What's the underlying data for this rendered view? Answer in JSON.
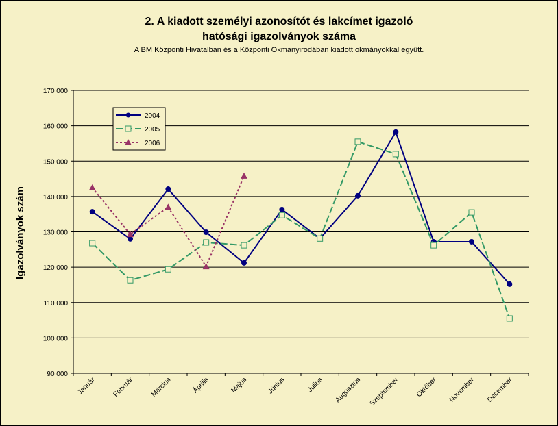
{
  "chart_data": {
    "type": "line",
    "title": [
      "2. A kiadott személyi azonosítót és lakcímet igazoló",
      "hatósági igazolványok száma"
    ],
    "subtitle": "A BM Központi Hivatalban és a Központi Okmányirodában kiadott okmányokkal együtt.",
    "y_label": "Igazolványok szám",
    "categories": [
      "Január",
      "Február",
      "Március",
      "Április",
      "Május",
      "Június",
      "Július",
      "Augusztus",
      "Szeptember",
      "Október",
      "November",
      "December"
    ],
    "series": [
      {
        "name": "2004",
        "color": "#000080",
        "dash": "solid",
        "marker": "circle",
        "values": [
          135700,
          128000,
          142100,
          129900,
          121200,
          136300,
          128100,
          140200,
          158200,
          127200,
          127200,
          115200
        ]
      },
      {
        "name": "2005",
        "color": "#339966",
        "dash": "dashed",
        "marker": "square",
        "values": [
          126800,
          116300,
          119400,
          127000,
          126200,
          134700,
          128100,
          155500,
          152000,
          126200,
          135500,
          105500
        ]
      },
      {
        "name": "2006",
        "color": "#993366",
        "dash": "dotted",
        "marker": "triangle",
        "values": [
          142500,
          129300,
          137000,
          120200,
          145800,
          null,
          null,
          null,
          null,
          null,
          null,
          null
        ]
      }
    ],
    "ylim": [
      90000,
      170000
    ],
    "yticks": [
      {
        "value": 90000,
        "label": "90 000"
      },
      {
        "value": 100000,
        "label": "100 000"
      },
      {
        "value": 110000,
        "label": "110 000"
      },
      {
        "value": 120000,
        "label": "120 000"
      },
      {
        "value": 130000,
        "label": "130 000"
      },
      {
        "value": 140000,
        "label": "140 000"
      },
      {
        "value": 150000,
        "label": "150 000"
      },
      {
        "value": 160000,
        "label": "160 000"
      },
      {
        "value": 170000,
        "label": "170 000"
      }
    ],
    "grid": true,
    "legend": "upper left"
  }
}
